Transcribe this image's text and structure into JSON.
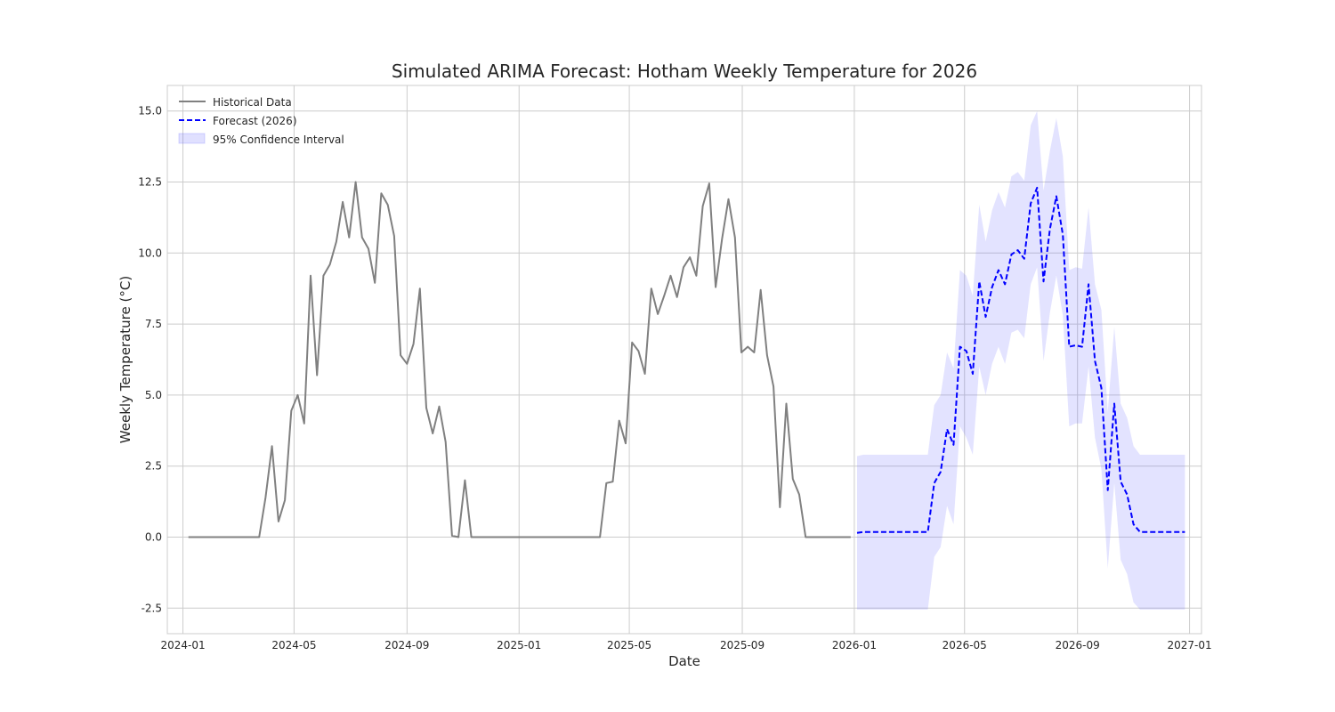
{
  "chart_data": {
    "type": "line",
    "title": "Simulated ARIMA Forecast: Hotham Weekly Temperature for 2026",
    "xlabel": "Date",
    "ylabel": "Weekly Temperature (°C)",
    "xlim": [
      "2023-12-15",
      "2027-01-14"
    ],
    "ylim": [
      -3.4,
      15.9
    ],
    "grid": true,
    "legend_position": "top-left",
    "x_ticks": [
      "2024-01",
      "2024-05",
      "2024-09",
      "2025-01",
      "2025-05",
      "2025-09",
      "2026-01",
      "2026-05",
      "2026-09",
      "2027-01"
    ],
    "y_ticks": [
      -2.5,
      0.0,
      2.5,
      5.0,
      7.5,
      10.0,
      12.5,
      15.0
    ],
    "colors": {
      "historical": "#808080",
      "forecast": "#0000ff",
      "ci": "#6666ff"
    },
    "series": [
      {
        "name": "Historical Data",
        "style": "solid",
        "x": [
          "2024-01-07",
          "2024-01-14",
          "2024-01-21",
          "2024-01-28",
          "2024-02-04",
          "2024-02-11",
          "2024-02-18",
          "2024-02-25",
          "2024-03-03",
          "2024-03-10",
          "2024-03-17",
          "2024-03-24",
          "2024-03-31",
          "2024-04-07",
          "2024-04-14",
          "2024-04-21",
          "2024-04-28",
          "2024-05-05",
          "2024-05-12",
          "2024-05-19",
          "2024-05-26",
          "2024-06-02",
          "2024-06-09",
          "2024-06-16",
          "2024-06-23",
          "2024-06-30",
          "2024-07-07",
          "2024-07-14",
          "2024-07-21",
          "2024-07-28",
          "2024-08-04",
          "2024-08-11",
          "2024-08-18",
          "2024-08-25",
          "2024-09-01",
          "2024-09-08",
          "2024-09-15",
          "2024-09-22",
          "2024-09-29",
          "2024-10-06",
          "2024-10-13",
          "2024-10-20",
          "2024-10-27",
          "2024-11-03",
          "2024-11-10",
          "2024-11-17",
          "2024-11-24",
          "2024-12-01",
          "2024-12-08",
          "2024-12-15",
          "2024-12-22",
          "2024-12-29",
          "2025-01-05",
          "2025-01-12",
          "2025-01-19",
          "2025-01-26",
          "2025-02-02",
          "2025-02-09",
          "2025-02-16",
          "2025-02-23",
          "2025-03-02",
          "2025-03-09",
          "2025-03-16",
          "2025-03-23",
          "2025-03-30",
          "2025-04-06",
          "2025-04-13",
          "2025-04-20",
          "2025-04-27",
          "2025-05-04",
          "2025-05-11",
          "2025-05-18",
          "2025-05-25",
          "2025-06-01",
          "2025-06-08",
          "2025-06-15",
          "2025-06-22",
          "2025-06-29",
          "2025-07-06",
          "2025-07-13",
          "2025-07-20",
          "2025-07-27",
          "2025-08-03",
          "2025-08-10",
          "2025-08-17",
          "2025-08-24",
          "2025-08-31",
          "2025-09-07",
          "2025-09-14",
          "2025-09-21",
          "2025-09-28",
          "2025-10-05",
          "2025-10-12",
          "2025-10-19",
          "2025-10-26",
          "2025-11-02",
          "2025-11-09",
          "2025-11-16",
          "2025-11-23",
          "2025-11-30",
          "2025-12-07",
          "2025-12-14",
          "2025-12-21",
          "2025-12-28"
        ],
        "y": [
          0.0,
          0.0,
          0.0,
          0.0,
          0.0,
          0.0,
          0.0,
          0.0,
          0.0,
          0.0,
          0.0,
          0.0,
          1.4,
          3.2,
          0.55,
          1.3,
          4.45,
          5.0,
          4.0,
          9.2,
          5.7,
          9.2,
          9.6,
          10.4,
          11.8,
          10.55,
          12.5,
          10.55,
          10.15,
          8.95,
          12.1,
          11.7,
          10.6,
          6.4,
          6.1,
          6.8,
          8.75,
          4.55,
          3.65,
          4.6,
          3.35,
          0.05,
          0.0,
          2.0,
          0.0,
          0.0,
          0.0,
          0.0,
          0.0,
          0.0,
          0.0,
          0.0,
          0.0,
          0.0,
          0.0,
          0.0,
          0.0,
          0.0,
          0.0,
          0.0,
          0.0,
          0.0,
          0.0,
          0.0,
          0.0,
          1.9,
          1.95,
          4.1,
          3.3,
          6.85,
          6.55,
          5.75,
          8.75,
          7.85,
          8.5,
          9.2,
          8.45,
          9.5,
          9.85,
          9.2,
          11.65,
          12.45,
          8.8,
          10.5,
          11.9,
          10.55,
          6.5,
          6.7,
          6.5,
          8.7,
          6.4,
          5.3,
          1.05,
          4.7,
          2.05,
          1.5,
          0.0,
          0.0,
          0.0,
          0.0,
          0.0,
          0.0,
          0.0,
          0.0
        ]
      },
      {
        "name": "Forecast (2026)",
        "style": "dashed",
        "x": [
          "2026-01-04",
          "2026-01-11",
          "2026-01-18",
          "2026-01-25",
          "2026-02-01",
          "2026-02-08",
          "2026-02-15",
          "2026-02-22",
          "2026-03-01",
          "2026-03-08",
          "2026-03-15",
          "2026-03-22",
          "2026-03-29",
          "2026-04-05",
          "2026-04-12",
          "2026-04-19",
          "2026-04-26",
          "2026-05-03",
          "2026-05-10",
          "2026-05-17",
          "2026-05-24",
          "2026-05-31",
          "2026-06-07",
          "2026-06-14",
          "2026-06-21",
          "2026-06-28",
          "2026-07-05",
          "2026-07-12",
          "2026-07-19",
          "2026-07-26",
          "2026-08-02",
          "2026-08-09",
          "2026-08-16",
          "2026-08-23",
          "2026-08-30",
          "2026-09-06",
          "2026-09-13",
          "2026-09-20",
          "2026-09-27",
          "2026-10-04",
          "2026-10-11",
          "2026-10-18",
          "2026-10-25",
          "2026-11-01",
          "2026-11-08",
          "2026-11-15",
          "2026-11-22",
          "2026-11-29",
          "2026-12-06",
          "2026-12-13",
          "2026-12-20",
          "2026-12-27"
        ],
        "y": [
          0.15,
          0.18,
          0.18,
          0.18,
          0.18,
          0.18,
          0.18,
          0.18,
          0.18,
          0.18,
          0.18,
          0.18,
          1.9,
          2.3,
          3.8,
          3.25,
          6.7,
          6.55,
          5.75,
          9.0,
          7.75,
          8.8,
          9.4,
          8.9,
          9.95,
          10.1,
          9.8,
          11.75,
          12.3,
          9.0,
          10.85,
          12.0,
          10.65,
          6.7,
          6.75,
          6.7,
          8.9,
          6.2,
          5.25,
          1.65,
          4.7,
          1.95,
          1.5,
          0.45,
          0.18,
          0.18,
          0.18,
          0.18,
          0.18,
          0.18,
          0.18,
          0.18
        ]
      }
    ],
    "confidence_interval": {
      "name": "95% Confidence Interval",
      "lower": [
        -2.55,
        -2.55,
        -2.55,
        -2.55,
        -2.55,
        -2.55,
        -2.55,
        -2.55,
        -2.55,
        -2.55,
        -2.55,
        -2.55,
        -0.7,
        -0.35,
        1.1,
        0.45,
        3.9,
        3.5,
        2.9,
        6.0,
        5.0,
        6.1,
        6.7,
        6.1,
        7.2,
        7.3,
        7.0,
        8.9,
        9.5,
        6.2,
        7.9,
        9.2,
        7.8,
        3.9,
        4.0,
        4.0,
        6.0,
        3.5,
        2.4,
        -1.1,
        1.9,
        -0.8,
        -1.3,
        -2.3,
        -2.55,
        -2.55,
        -2.55,
        -2.55,
        -2.55,
        -2.55,
        -2.55,
        -2.55
      ],
      "upper": [
        2.85,
        2.9,
        2.9,
        2.9,
        2.9,
        2.9,
        2.9,
        2.9,
        2.9,
        2.9,
        2.9,
        2.9,
        4.65,
        5.0,
        6.5,
        5.95,
        9.4,
        9.2,
        8.5,
        11.7,
        10.4,
        11.5,
        12.15,
        11.6,
        12.7,
        12.85,
        12.55,
        14.5,
        15.0,
        12.2,
        13.6,
        14.75,
        13.4,
        9.4,
        9.5,
        9.45,
        11.6,
        8.9,
        8.0,
        4.4,
        7.4,
        4.7,
        4.2,
        3.2,
        2.9,
        2.9,
        2.9,
        2.9,
        2.9,
        2.9,
        2.9,
        2.9
      ]
    }
  }
}
